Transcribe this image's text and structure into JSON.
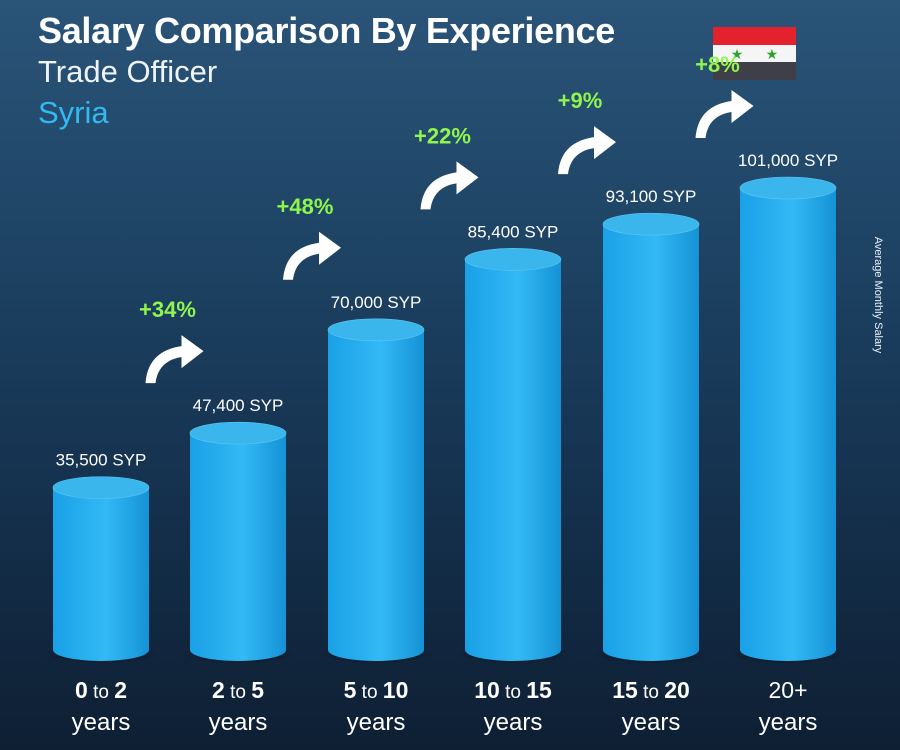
{
  "header": {
    "title": "Salary Comparison By Experience",
    "subtitle": "Trade Officer",
    "country": "Syria"
  },
  "flag": {
    "icon": "syria-flag-icon",
    "colors": [
      "#e4222e",
      "#f5f5f5",
      "#3e3f48"
    ],
    "star_color": "#2ea12e"
  },
  "axis_side_label": "Average Monthly Salary",
  "colors": {
    "bar": "#29aeee",
    "bar_top": "#3ab6ec",
    "increase": "#8ef64c",
    "text": "#ffffff"
  },
  "chart_data": {
    "type": "bar",
    "title": "Salary Comparison By Experience",
    "ylabel": "Average Monthly Salary",
    "categories": [
      {
        "from": "0",
        "sep": "to",
        "to": "2",
        "unit": "years"
      },
      {
        "from": "2",
        "sep": "to",
        "to": "5",
        "unit": "years"
      },
      {
        "from": "5",
        "sep": "to",
        "to": "10",
        "unit": "years"
      },
      {
        "from": "10",
        "sep": "to",
        "to": "15",
        "unit": "years"
      },
      {
        "from": "15",
        "sep": "to",
        "to": "20",
        "unit": "years"
      },
      {
        "from": "20+",
        "sep": "",
        "to": "",
        "unit": "years"
      }
    ],
    "values": [
      35500,
      47400,
      70000,
      85400,
      93100,
      101000
    ],
    "value_labels": [
      "35,500 SYP",
      "47,400 SYP",
      "70,000 SYP",
      "85,400 SYP",
      "93,100 SYP",
      "101,000 SYP"
    ],
    "increases": [
      "+34%",
      "+48%",
      "+22%",
      "+9%",
      "+8%"
    ],
    "currency": "SYP",
    "ylim": [
      0,
      101000
    ]
  }
}
